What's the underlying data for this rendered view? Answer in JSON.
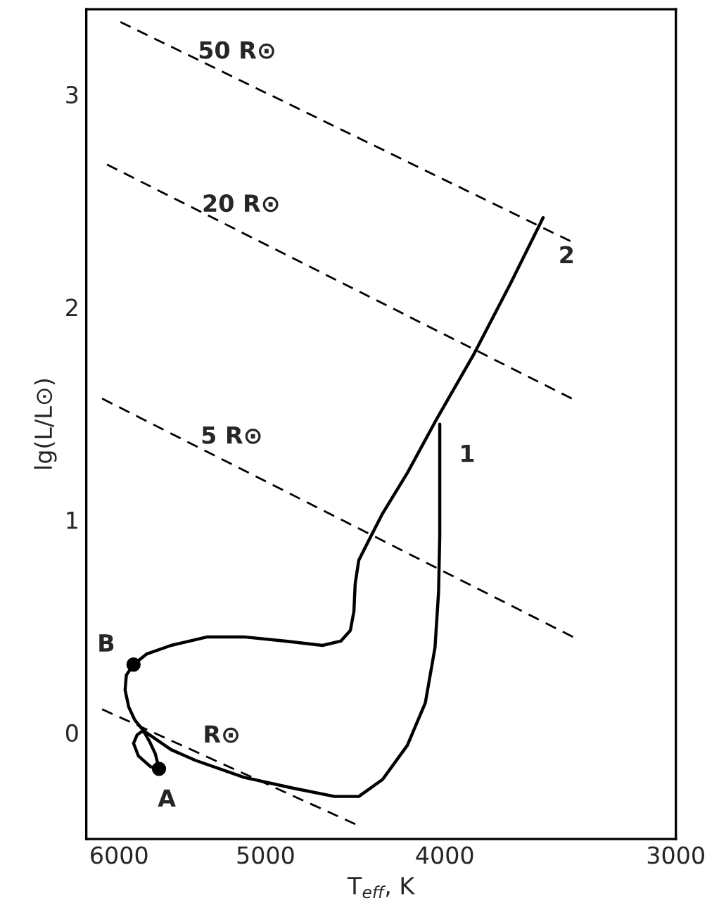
{
  "chart_data": {
    "type": "line",
    "xlabel": "T$_{eff}$, K",
    "ylabel": "lg(L/L⊙)",
    "log": "x",
    "xlim": [
      6250,
      3000
    ],
    "xticks": [
      6000,
      5000,
      4000,
      3000
    ],
    "ylim": [
      -0.5,
      3.4
    ],
    "yticks": [
      0,
      1,
      2,
      3
    ],
    "series": [
      {
        "color": "#000000",
        "line_style": "dashed",
        "x": [
          5990,
          3421
        ],
        "values": [
          3.34,
          2.31
        ]
      },
      {
        "color": "#000000",
        "line_style": "dashed",
        "x": [
          6091,
          3415
        ],
        "values": [
          2.67,
          1.57
        ]
      },
      {
        "color": "#000000",
        "line_style": "dashed",
        "x": [
          6128,
          3410
        ],
        "values": [
          1.57,
          0.45
        ]
      },
      {
        "color": "#000000",
        "line_style": "dashed",
        "x": [
          6128,
          4471
        ],
        "values": [
          0.11,
          -0.43
        ]
      },
      {
        "color": "#000000",
        "line_style": "solid",
        "x": [
          4025,
          4025,
          4025,
          4031,
          4049,
          4098,
          4191,
          4322,
          4452,
          4588,
          4838,
          5137,
          5457,
          5624,
          5822,
          5866,
          5893,
          5857,
          5769,
          5709,
          5735,
          5778,
          5822,
          5884,
          5928,
          5955,
          5946,
          5893,
          5796,
          5624,
          5375,
          5137,
          4874,
          4658,
          4553,
          4499,
          4479,
          4472,
          4452,
          4405,
          4322,
          4191,
          4037,
          3857,
          3686,
          3539
        ],
        "values": [
          1.45,
          1.19,
          0.93,
          0.66,
          0.4,
          0.14,
          -0.06,
          -0.22,
          -0.3,
          -0.3,
          -0.26,
          -0.21,
          -0.13,
          -0.08,
          0.01,
          -0.01,
          -0.05,
          -0.11,
          -0.16,
          -0.17,
          -0.1,
          -0.04,
          0.01,
          0.06,
          0.12,
          0.2,
          0.27,
          0.32,
          0.37,
          0.41,
          0.45,
          0.45,
          0.43,
          0.41,
          0.43,
          0.48,
          0.57,
          0.7,
          0.81,
          0.89,
          1.03,
          1.22,
          1.48,
          1.78,
          2.11,
          2.42
        ]
      },
      {
        "type": "scatter",
        "color": "#000000",
        "marker": "circle",
        "x": [
          5709,
          5893
        ],
        "values": [
          -0.17,
          0.32
        ]
      }
    ],
    "annotations": [
      {
        "text": "50 R⊙",
        "x": 5180,
        "y": 3.07
      },
      {
        "text": "20 R⊙",
        "x": 5154,
        "y": 2.35
      },
      {
        "text": "5 R⊙",
        "x": 5215,
        "y": 1.26
      },
      {
        "text": "R⊙",
        "x": 5280,
        "y": -0.145
      },
      {
        "text": "1",
        "x": 4025,
        "y": 1.45
      },
      {
        "text": "2",
        "x": 3539,
        "y": 2.42
      },
      {
        "text": "A",
        "x": 5709,
        "y": -0.17
      },
      {
        "text": "B",
        "x": 5893,
        "y": 0.32
      }
    ]
  }
}
